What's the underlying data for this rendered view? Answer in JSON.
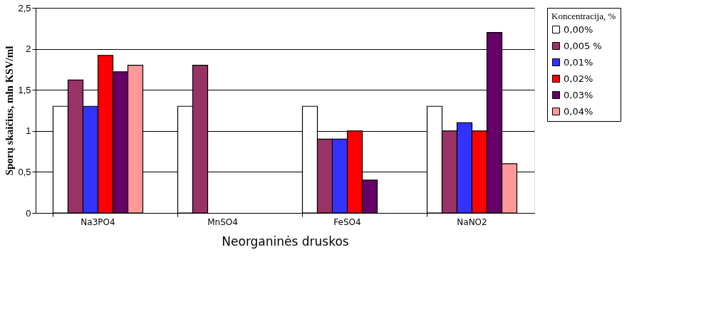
{
  "chart_data": {
    "type": "bar",
    "xlabel": "Neorganinės druskos",
    "ylabel": "Sporų skaičius, mln KSV/ml",
    "legend_title": "Koncentracija, %",
    "categories": [
      "Na3PO4",
      "MnSO4",
      "FeSO4",
      "NaNO2"
    ],
    "series": [
      {
        "name": "0,00%",
        "color": "#ffffff",
        "values": [
          1.3,
          1.3,
          1.3,
          1.3
        ]
      },
      {
        "name": "0,005 %",
        "color": "#993366",
        "values": [
          1.62,
          1.8,
          0.9,
          1.0
        ]
      },
      {
        "name": "0,01%",
        "color": "#3333ff",
        "values": [
          1.3,
          null,
          0.9,
          1.1
        ]
      },
      {
        "name": "0,02%",
        "color": "#ff0000",
        "values": [
          1.92,
          null,
          1.0,
          1.0
        ]
      },
      {
        "name": "0,03%",
        "color": "#660066",
        "values": [
          1.72,
          null,
          0.4,
          2.2
        ]
      },
      {
        "name": "0,04%",
        "color": "#ff9999",
        "values": [
          1.8,
          null,
          null,
          0.6
        ]
      }
    ],
    "ylim": [
      0,
      2.5
    ],
    "yticks": [
      0,
      {
        "value": 0.5,
        "label": "0,5"
      },
      1,
      {
        "value": 1.5,
        "label": "1,5"
      },
      2,
      {
        "value": 2.5,
        "label": "2,5"
      }
    ],
    "grid": "y",
    "legend": "right"
  }
}
